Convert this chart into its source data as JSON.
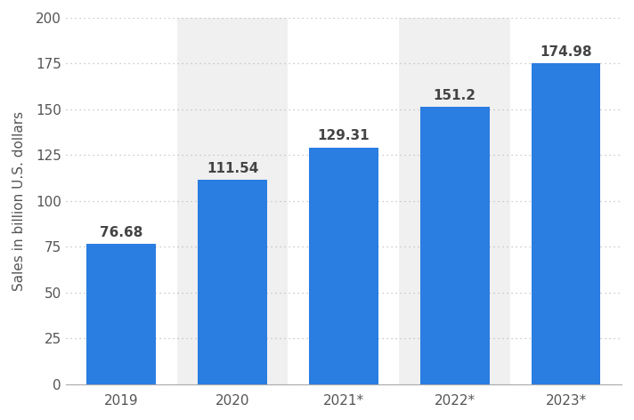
{
  "categories": [
    "2019",
    "2020",
    "2021*",
    "2022*",
    "2023*"
  ],
  "values": [
    76.68,
    111.54,
    129.31,
    151.2,
    174.98
  ],
  "bar_color": "#2a7de1",
  "ylabel": "Sales in billion U.S. dollars",
  "ylim": [
    0,
    200
  ],
  "yticks": [
    0,
    25,
    50,
    75,
    100,
    125,
    150,
    175,
    200
  ],
  "background_color": "#ffffff",
  "plot_bg_color": "#ffffff",
  "stripe_color": "#f0f0f0",
  "stripe_indices": [
    1,
    3
  ],
  "label_fontsize": 11,
  "tick_fontsize": 11,
  "ylabel_fontsize": 11,
  "value_label_fontsize": 11,
  "bar_width": 0.62
}
